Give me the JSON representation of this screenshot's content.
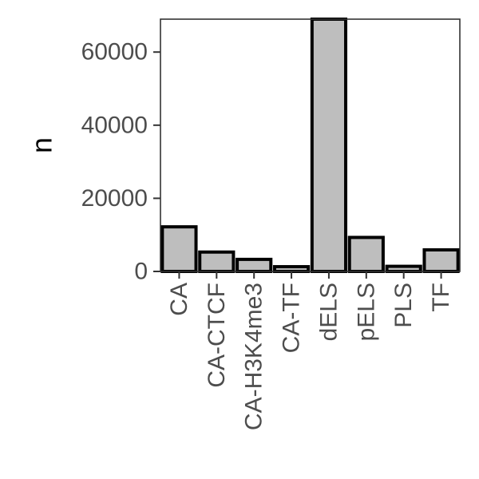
{
  "chart_data": {
    "type": "bar",
    "title": "",
    "xlabel": "",
    "ylabel": "n",
    "categories": [
      "CA",
      "CA-CTCF",
      "CA-H3K4me3",
      "CA-TF",
      "dELS",
      "pELS",
      "PLS",
      "TF"
    ],
    "values": [
      12200,
      5300,
      3300,
      1300,
      69000,
      9300,
      1400,
      5900
    ],
    "ylim": [
      0,
      69000
    ],
    "y_ticks": [
      0,
      20000,
      40000,
      60000
    ],
    "grid": false,
    "legend": "none",
    "colors": {
      "bar_fill": "#bebebe",
      "bar_stroke": "#000000",
      "panel_border": "#333333",
      "tick_text": "#4d4d4d",
      "axis_title": "#000000"
    }
  }
}
